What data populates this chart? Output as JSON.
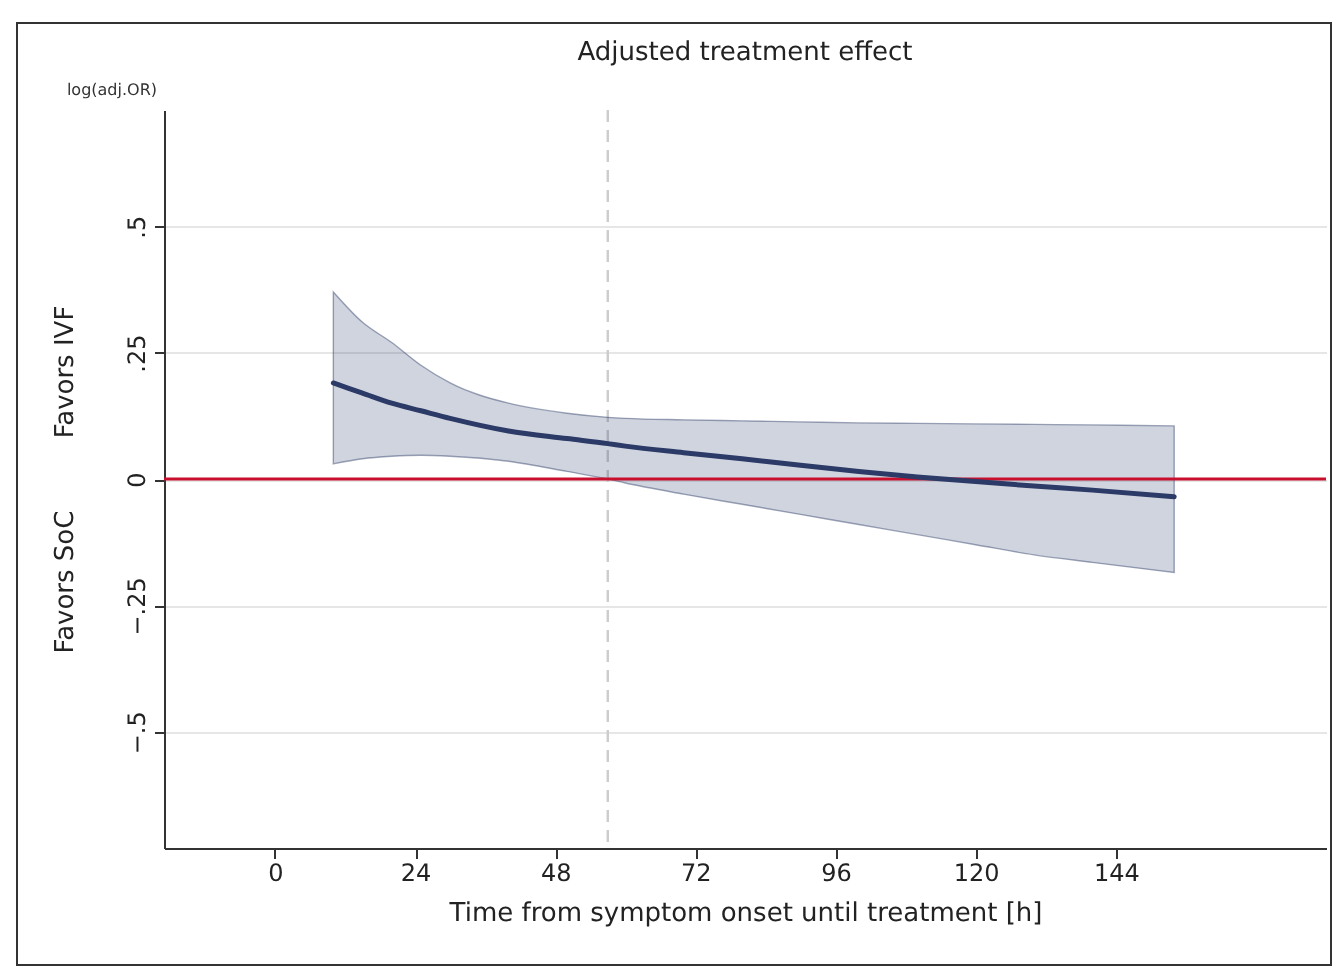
{
  "chart_data": {
    "type": "line",
    "title": "Adjusted treatment effect",
    "xlabel": "Time from symptom onset until treatment [h]",
    "ylabel": "log(adj.OR)",
    "annotations": [
      "Favors IVF",
      "Favors SoC"
    ],
    "xlim": [
      -19,
      180
    ],
    "xticks": [
      0,
      24,
      48,
      72,
      96,
      120,
      144
    ],
    "ylim": [
      -0.73,
      0.73
    ],
    "yticks": [
      {
        "value": -0.5,
        "label": "−.5"
      },
      {
        "value": -0.25,
        "label": "−.25"
      },
      {
        "value": 0,
        "label": "0"
      },
      {
        "value": 0.25,
        "label": ".25"
      },
      {
        "value": 0.5,
        "label": ".5"
      }
    ],
    "grid": "y",
    "marker": "none",
    "line_style": "solid",
    "series": [
      {
        "color": "#2b3a67",
        "x": [
          10,
          15,
          20,
          25,
          30,
          40,
          50,
          57,
          60,
          70,
          80,
          90,
          100,
          110,
          120,
          130,
          140,
          154
        ],
        "values": [
          0.19,
          0.17,
          0.15,
          0.135,
          0.12,
          0.095,
          0.08,
          0.07,
          0.065,
          0.052,
          0.04,
          0.027,
          0.015,
          0.004,
          -0.005,
          -0.014,
          -0.022,
          -0.035
        ],
        "lower": [
          0.03,
          0.04,
          0.045,
          0.047,
          0.045,
          0.035,
          0.015,
          0.0,
          -0.008,
          -0.03,
          -0.05,
          -0.07,
          -0.09,
          -0.11,
          -0.13,
          -0.15,
          -0.165,
          -0.185
        ],
        "upper": [
          0.37,
          0.31,
          0.27,
          0.225,
          0.19,
          0.15,
          0.13,
          0.122,
          0.12,
          0.117,
          0.115,
          0.113,
          0.111,
          0.11,
          0.109,
          0.108,
          0.107,
          0.105
        ]
      }
    ],
    "ref_lines": [
      {
        "axis": "y",
        "value": 0,
        "color": "#c8102e",
        "line_style": "solid"
      },
      {
        "axis": "x",
        "value": 57,
        "color": "#cccccc",
        "line_style": "dashed"
      }
    ]
  }
}
